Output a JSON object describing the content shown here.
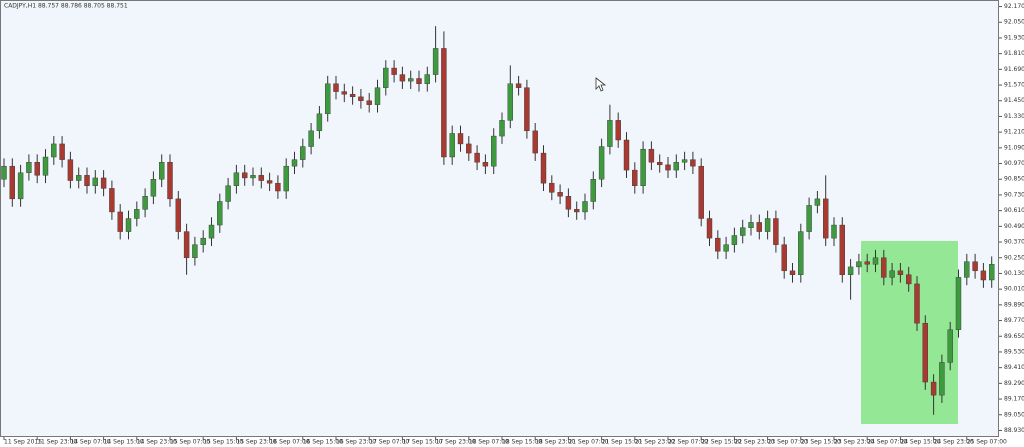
{
  "chart_data": {
    "type": "candlestick",
    "title": "CADJPY,H1 88.757 88.786 88.705 88.751",
    "up_color": "#3f9a3f",
    "down_color": "#a83a32",
    "ylim": [
      88.88,
      92.22
    ],
    "yticks": [
      {
        "value": 92.17,
        "label": "92.170"
      },
      {
        "value": 92.05,
        "label": "92.050"
      },
      {
        "value": 91.93,
        "label": "91.930"
      },
      {
        "value": 91.81,
        "label": "91.810"
      },
      {
        "value": 91.69,
        "label": "91.690"
      },
      {
        "value": 91.57,
        "label": "91.570"
      },
      {
        "value": 91.45,
        "label": "91.450"
      },
      {
        "value": 91.33,
        "label": "91.330"
      },
      {
        "value": 91.21,
        "label": "91.210"
      },
      {
        "value": 91.09,
        "label": "91.090"
      },
      {
        "value": 90.97,
        "label": "90.970"
      },
      {
        "value": 90.85,
        "label": "90.850"
      },
      {
        "value": 90.73,
        "label": "90.730"
      },
      {
        "value": 90.61,
        "label": "90.610"
      },
      {
        "value": 90.49,
        "label": "90.490"
      },
      {
        "value": 90.37,
        "label": "90.370"
      },
      {
        "value": 90.25,
        "label": "90.250"
      },
      {
        "value": 90.13,
        "label": "90.130"
      },
      {
        "value": 90.01,
        "label": "90.010"
      },
      {
        "value": 89.89,
        "label": "89.890"
      },
      {
        "value": 89.77,
        "label": "89.770"
      },
      {
        "value": 89.65,
        "label": "89.650"
      },
      {
        "value": 89.53,
        "label": "89.530"
      },
      {
        "value": 89.41,
        "label": "89.410"
      },
      {
        "value": 89.29,
        "label": "89.290"
      },
      {
        "value": 89.17,
        "label": "89.170"
      },
      {
        "value": 89.05,
        "label": "89.050"
      },
      {
        "value": 88.93,
        "label": "88.930"
      }
    ],
    "categories": [
      "11 Sep 2015",
      null,
      null,
      null,
      "11 Sep 23:00",
      null,
      null,
      null,
      "14 Sep 07:00",
      null,
      null,
      null,
      "14 Sep 15:00",
      null,
      null,
      null,
      "14 Sep 23:00",
      null,
      null,
      null,
      "15 Sep 07:00",
      null,
      null,
      null,
      "15 Sep 15:00",
      null,
      null,
      null,
      "15 Sep 23:00",
      null,
      null,
      null,
      "16 Sep 07:00",
      null,
      null,
      null,
      "16 Sep 15:00",
      null,
      null,
      null,
      "16 Sep 23:00",
      null,
      null,
      null,
      "17 Sep 07:00",
      null,
      null,
      null,
      "17 Sep 15:00",
      null,
      null,
      null,
      "17 Sep 23:00",
      null,
      null,
      null,
      "18 Sep 07:00",
      null,
      null,
      null,
      "18 Sep 15:00",
      null,
      null,
      null,
      "18 Sep 23:00",
      null,
      null,
      null,
      "21 Sep 07:00",
      null,
      null,
      null,
      "21 Sep 15:00",
      null,
      null,
      null,
      "21 Sep 23:00",
      null,
      null,
      null,
      "22 Sep 07:00",
      null,
      null,
      null,
      "22 Sep 15:00",
      null,
      null,
      null,
      "22 Sep 23:00",
      null,
      null,
      null,
      "23 Sep 07:00",
      null,
      null,
      null,
      "23 Sep 15:00",
      null,
      null,
      null,
      "23 Sep 23:00",
      null,
      null,
      null,
      "24 Sep 07:00",
      null,
      null,
      null,
      "24 Sep 15:00",
      null,
      null,
      null,
      "24 Sep 23:00",
      null,
      null,
      null,
      "25 Sep 07:00",
      null,
      null,
      null
    ],
    "open": [
      90.85,
      90.95,
      90.7,
      90.9,
      90.98,
      90.88,
      91.02,
      91.12,
      91.0,
      90.84,
      90.88,
      90.8,
      90.86,
      90.78,
      90.6,
      90.45,
      90.55,
      90.62,
      90.72,
      90.85,
      90.98,
      90.7,
      90.45,
      90.25,
      90.35,
      90.4,
      90.5,
      90.68,
      90.8,
      90.9,
      90.86,
      90.88,
      90.84,
      90.82,
      90.76,
      90.95,
      91.0,
      91.1,
      91.22,
      91.35,
      91.58,
      91.52,
      91.5,
      91.48,
      91.45,
      91.42,
      91.55,
      91.7,
      91.65,
      91.6,
      91.62,
      91.58,
      91.65,
      91.85,
      91.02,
      91.2,
      91.12,
      91.05,
      90.98,
      90.95,
      91.18,
      91.3,
      91.58,
      91.55,
      91.22,
      91.05,
      90.82,
      90.75,
      90.72,
      90.62,
      90.6,
      90.68,
      90.85,
      91.1,
      91.3,
      91.15,
      90.92,
      90.8,
      91.08,
      90.98,
      90.96,
      90.92,
      90.98,
      91.0,
      90.95,
      90.55,
      90.4,
      90.3,
      90.35,
      90.42,
      90.48,
      90.52,
      90.45,
      90.55,
      90.35,
      90.15,
      90.12,
      90.45,
      90.65,
      90.7,
      90.4,
      90.5,
      90.12,
      90.18,
      90.22,
      90.2,
      90.25,
      90.1,
      90.15,
      90.12,
      90.05,
      89.75,
      89.3,
      89.2,
      89.45,
      89.7,
      90.1,
      90.22,
      90.15,
      90.08
    ],
    "high": [
      91.01,
      91.01,
      90.96,
      91.04,
      91.04,
      91.08,
      91.18,
      91.18,
      91.06,
      90.94,
      90.94,
      90.92,
      90.92,
      90.84,
      90.66,
      90.61,
      90.68,
      90.78,
      90.91,
      91.04,
      91.04,
      90.76,
      90.51,
      90.41,
      90.46,
      90.56,
      90.74,
      90.86,
      90.96,
      90.96,
      90.94,
      90.94,
      90.9,
      90.88,
      91.01,
      91.06,
      91.16,
      91.28,
      91.41,
      91.64,
      91.64,
      91.58,
      91.56,
      91.54,
      91.51,
      91.61,
      91.76,
      91.76,
      91.71,
      91.68,
      91.68,
      91.71,
      92.02,
      91.98,
      91.26,
      91.26,
      91.18,
      91.11,
      91.04,
      91.24,
      91.36,
      91.72,
      91.64,
      91.61,
      91.28,
      91.11,
      90.88,
      90.81,
      90.78,
      90.68,
      90.74,
      90.91,
      91.16,
      91.42,
      91.36,
      91.21,
      90.98,
      91.14,
      91.14,
      91.04,
      91.02,
      91.04,
      91.06,
      91.06,
      91.01,
      90.61,
      90.46,
      90.41,
      90.48,
      90.54,
      90.58,
      90.58,
      90.61,
      90.61,
      90.41,
      90.21,
      90.51,
      90.71,
      90.76,
      90.88,
      90.56,
      90.56,
      90.24,
      90.28,
      90.28,
      90.31,
      90.31,
      90.21,
      90.21,
      90.18,
      90.11,
      89.81,
      89.36,
      89.51,
      89.76,
      90.16,
      90.28,
      90.28,
      90.21,
      90.26
    ],
    "low": [
      90.79,
      90.64,
      90.64,
      90.84,
      90.82,
      90.82,
      90.96,
      90.94,
      90.78,
      90.78,
      90.74,
      90.74,
      90.72,
      90.54,
      90.39,
      90.39,
      90.49,
      90.56,
      90.66,
      90.79,
      90.64,
      90.39,
      90.12,
      90.19,
      90.29,
      90.34,
      90.44,
      90.62,
      90.74,
      90.8,
      90.8,
      90.78,
      90.76,
      90.7,
      90.7,
      90.89,
      90.94,
      91.04,
      91.16,
      91.29,
      91.46,
      91.44,
      91.42,
      91.39,
      91.36,
      91.36,
      91.49,
      91.59,
      91.54,
      91.54,
      91.52,
      91.52,
      91.59,
      90.96,
      90.96,
      91.06,
      90.99,
      90.92,
      90.89,
      90.89,
      91.12,
      91.24,
      91.49,
      91.16,
      90.99,
      90.76,
      90.69,
      90.66,
      90.56,
      90.54,
      90.54,
      90.62,
      90.79,
      91.04,
      91.09,
      90.86,
      90.74,
      90.74,
      90.92,
      90.9,
      90.86,
      90.86,
      90.92,
      90.89,
      90.49,
      90.34,
      90.24,
      90.24,
      90.29,
      90.36,
      90.42,
      90.39,
      90.39,
      90.29,
      90.09,
      90.06,
      90.06,
      90.39,
      90.59,
      90.34,
      90.34,
      90.06,
      89.93,
      90.12,
      90.14,
      90.14,
      90.04,
      90.04,
      90.06,
      89.99,
      89.69,
      89.24,
      89.05,
      89.14,
      89.39,
      89.64,
      90.04,
      90.09,
      90.02,
      90.02
    ],
    "close": [
      90.95,
      90.7,
      90.9,
      90.98,
      90.88,
      91.02,
      91.12,
      91.0,
      90.84,
      90.88,
      90.8,
      90.86,
      90.78,
      90.6,
      90.45,
      90.55,
      90.62,
      90.72,
      90.85,
      90.98,
      90.7,
      90.45,
      90.25,
      90.35,
      90.4,
      90.5,
      90.68,
      90.8,
      90.9,
      90.86,
      90.88,
      90.84,
      90.82,
      90.76,
      90.95,
      91.0,
      91.1,
      91.22,
      91.35,
      91.58,
      91.52,
      91.5,
      91.48,
      91.45,
      91.42,
      91.55,
      91.7,
      91.65,
      91.6,
      91.62,
      91.58,
      91.65,
      91.85,
      91.02,
      91.2,
      91.12,
      91.05,
      90.98,
      90.95,
      91.18,
      91.3,
      91.58,
      91.55,
      91.22,
      91.05,
      90.82,
      90.75,
      90.72,
      90.62,
      90.6,
      90.68,
      90.85,
      91.1,
      91.3,
      91.15,
      90.92,
      90.8,
      91.08,
      90.98,
      90.96,
      90.92,
      90.98,
      91.0,
      90.95,
      90.55,
      90.4,
      90.3,
      90.35,
      90.42,
      90.48,
      90.52,
      90.45,
      90.55,
      90.35,
      90.15,
      90.12,
      90.45,
      90.65,
      90.7,
      90.4,
      90.5,
      90.12,
      90.18,
      90.22,
      90.2,
      90.25,
      90.1,
      90.15,
      90.12,
      90.05,
      89.75,
      89.3,
      89.2,
      89.45,
      89.7,
      90.1,
      90.22,
      90.15,
      90.08,
      90.2
    ]
  }
}
